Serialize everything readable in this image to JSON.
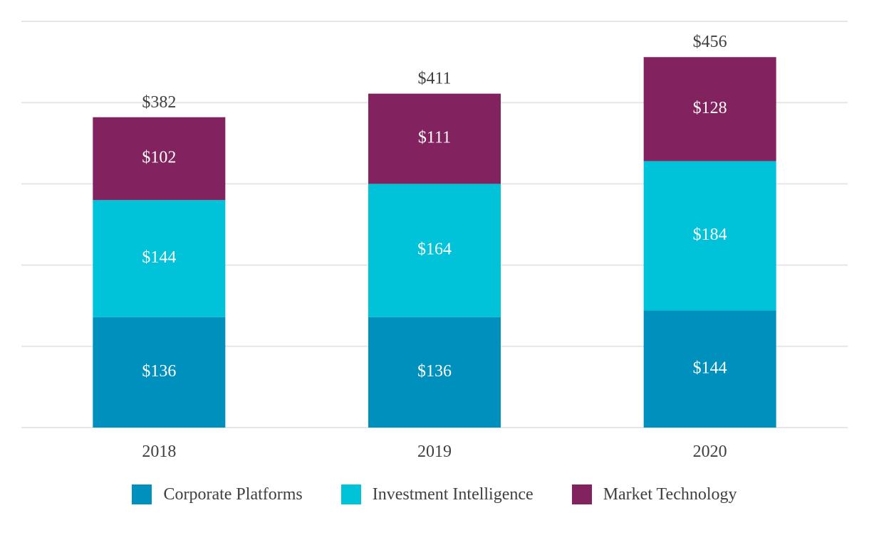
{
  "chart_data": {
    "type": "bar",
    "stacked": true,
    "categories": [
      "2018",
      "2019",
      "2020"
    ],
    "series": [
      {
        "name": "Corporate Platforms",
        "color": "#0090bd",
        "values": [
          136,
          136,
          144
        ],
        "labels": [
          "$136",
          "$136",
          "$144"
        ]
      },
      {
        "name": "Investment Intelligence",
        "color": "#00c2d8",
        "values": [
          144,
          164,
          184
        ],
        "labels": [
          "$144",
          "$164",
          "$184"
        ]
      },
      {
        "name": "Market Technology",
        "color": "#82235f",
        "values": [
          102,
          111,
          128
        ],
        "labels": [
          "$102",
          "$111",
          "$128"
        ]
      }
    ],
    "totals": [
      382,
      411,
      456
    ],
    "total_labels": [
      "$382",
      "$411",
      "$456"
    ],
    "ylim": [
      0,
      500
    ],
    "grid": true,
    "legend_position": "bottom"
  }
}
